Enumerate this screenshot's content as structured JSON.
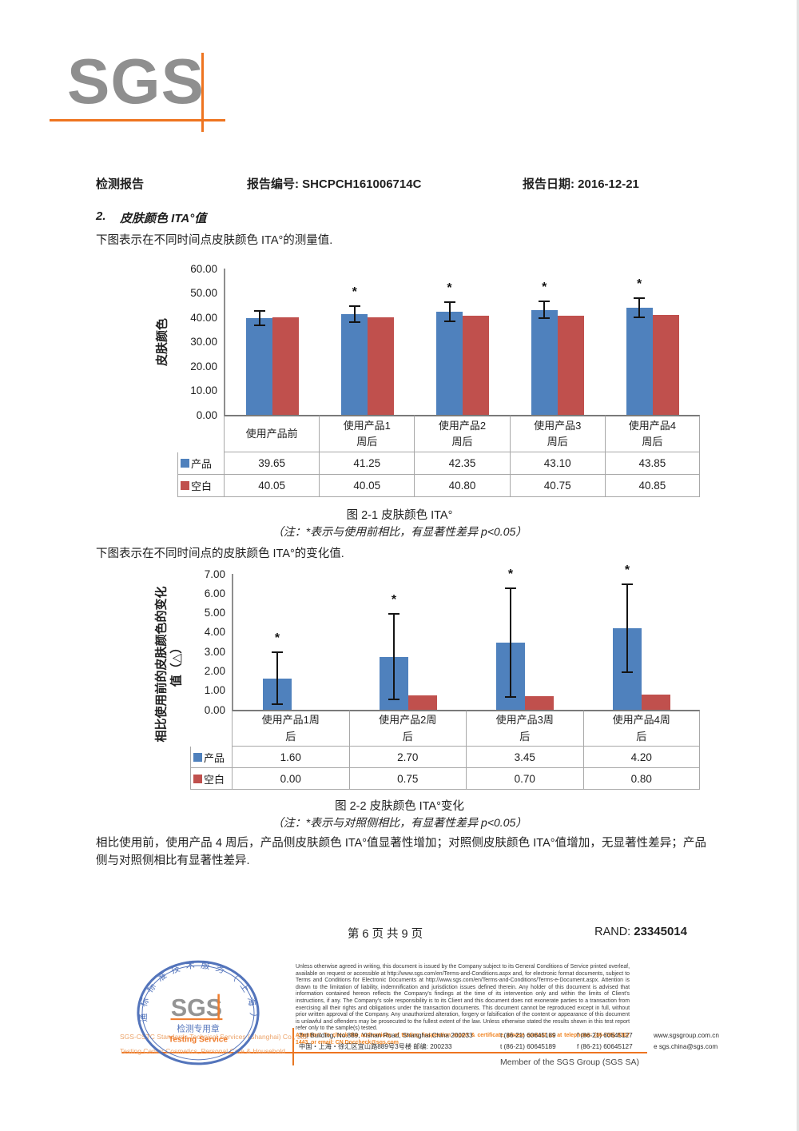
{
  "logo": {
    "text": "SGS"
  },
  "header": {
    "doc_type": "检测报告",
    "report_no": "报告编号: SHCPCH161006714C",
    "report_date": "报告日期: 2016-12-21"
  },
  "section": {
    "number": "2.",
    "title": "皮肤颜色 ITA°值",
    "intro_measured": "下图表示在不同时间点皮肤颜色 ITA°的测量值.",
    "intro_change": "下图表示在不同时间点的皮肤颜色 ITA°的变化值.",
    "conclusion": "相比使用前，使用产品 4 周后，产品侧皮肤颜色 ITA°值显著性增加；对照侧皮肤颜色 ITA°值增加，无显著性差异；产品侧与对照侧相比有显著性差异."
  },
  "chart_data": [
    {
      "type": "bar",
      "title": "图 2-1 皮肤颜色 ITA°",
      "note": "（注：*表示与使用前相比，有显著性差异 p<0.05）",
      "ylabel": "皮肤颜色",
      "ylabel_lines": [
        "皮肤颜色"
      ],
      "ylim": [
        0,
        60
      ],
      "ytick_step": 10,
      "grid": false,
      "legend_position": "table-left",
      "categories": [
        "使用产品前",
        "使用产品1周后",
        "使用产品2周后",
        "使用产品3周后",
        "使用产品4周后"
      ],
      "category_lines": [
        [
          "使用产品前"
        ],
        [
          "使用产品1",
          "周后"
        ],
        [
          "使用产品2",
          "周后"
        ],
        [
          "使用产品3",
          "周后"
        ],
        [
          "使用产品4",
          "周后"
        ]
      ],
      "series": [
        {
          "name": "产品",
          "color": "#4F81BD",
          "values": [
            39.65,
            41.25,
            42.35,
            43.1,
            43.85
          ],
          "error_low": [
            36.4,
            37.8,
            38.1,
            39.3,
            39.7
          ],
          "error_high": [
            42.9,
            44.8,
            46.7,
            47.0,
            48.2
          ],
          "significant": [
            false,
            true,
            true,
            true,
            true
          ]
        },
        {
          "name": "空白",
          "color": "#C0504D",
          "values": [
            40.05,
            40.05,
            40.8,
            40.75,
            40.85
          ]
        }
      ]
    },
    {
      "type": "bar",
      "title": "图 2-2 皮肤颜色 ITA°变化",
      "note": "（注：*表示与对照侧相比，有显著性差异 p<0.05）",
      "ylabel": "相比使用前的皮肤颜色的变化 值（△）",
      "ylabel_lines": [
        "相比使用前的皮肤颜色的变化",
        "值（△）"
      ],
      "ylim": [
        0,
        7
      ],
      "ytick_step": 1,
      "grid": false,
      "legend_position": "table-left",
      "categories": [
        "使用产品1周后",
        "使用产品2周后",
        "使用产品3周后",
        "使用产品4周后"
      ],
      "category_lines": [
        [
          "使用产品1周",
          "后"
        ],
        [
          "使用产品2周",
          "后"
        ],
        [
          "使用产品3周",
          "后"
        ],
        [
          "使用产品4周",
          "后"
        ]
      ],
      "series": [
        {
          "name": "产品",
          "color": "#4F81BD",
          "values": [
            1.6,
            2.7,
            3.45,
            4.2
          ],
          "error_low": [
            0.25,
            0.5,
            0.6,
            1.9
          ],
          "error_high": [
            3.0,
            5.0,
            6.3,
            6.5
          ],
          "significant": [
            true,
            true,
            true,
            true
          ]
        },
        {
          "name": "空白",
          "color": "#C0504D",
          "values": [
            0.0,
            0.75,
            0.7,
            0.8
          ]
        }
      ]
    }
  ],
  "page_footer": {
    "page_info": "第 6 页 共 9 页",
    "rand_label": "RAND:",
    "rand_value": "23345014"
  },
  "footer": {
    "stamp": {
      "ring_text": "通标标准技术服务（上海）有限公司",
      "sgs": "SGS",
      "seal_label": "检测专用章",
      "service_label": "Testing Service"
    },
    "company_line1": "SGS-CSTC Standards Technical Services (Shanghai) Co., Ltd.",
    "company_line2": "Testing Center Cosmetics, Personal Care & Household",
    "disclaimer": "Unless otherwise agreed in writing, this document is issued by the Company subject to its General Conditions of Service printed overleaf, available on request or accessible at http://www.sgs.com/en/Terms-and-Conditions.aspx and, for electronic format documents, subject to Terms and Conditions for Electronic Documents at http://www.sgs.com/en/Terms-and-Conditions/Terms-e-Document.aspx. Attention is drawn to the limitation of liability, indemnification and jurisdiction issues defined therein. Any holder of this document is advised that information contained hereon reflects the Company's findings at the time of its intervention only and within the limits of Client's instructions, if any. The Company's sole responsibility is to its Client and this document does not exonerate parties to a transaction from exercising all their rights and obligations under the transaction documents. This document cannot be reproduced except in full, without prior written approval of the Company. Any unauthorized alteration, forgery or falsification of the content or appearance of this document is unlawful and offenders may be prosecuted to the fullest extent of the law. Unless otherwise stated the results shown in this test report refer only to the sample(s) tested.",
    "attention": "Attention: To check the authenticity of testing /inspection report & certificate, please contact us at telephone: (86-755) 8307 1443, or email: CN.Doccheck@sgs.com",
    "address_rows": [
      {
        "address": "3rd Building, No.889, Yishan Road, Shanghai China 200233",
        "tel": "t (86-21) 60645189",
        "fax": "f (86-21) 60645127",
        "site": "www.sgsgroup.com.cn"
      },
      {
        "address": "中国・上海・徐汇区宜山路889号3号楼  邮编: 200233",
        "tel": "t (86-21) 60645189",
        "fax": "f (86-21) 60645127",
        "site": "e  sgs.china@sgs.com"
      }
    ],
    "member": "Member of the SGS Group (SGS SA)"
  }
}
